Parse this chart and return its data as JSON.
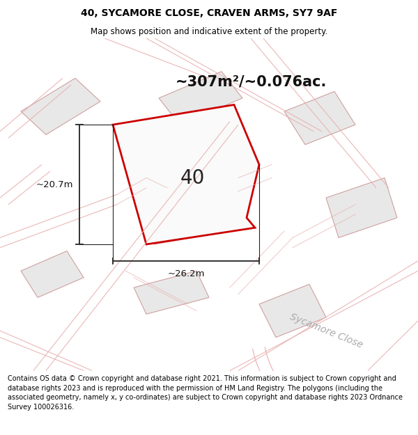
{
  "title": "40, SYCAMORE CLOSE, CRAVEN ARMS, SY7 9AF",
  "subtitle": "Map shows position and indicative extent of the property.",
  "area_text": "~307m²/~0.076ac.",
  "label_40": "40",
  "dim_width": "~26.2m",
  "dim_height": "~20.7m",
  "road_label": "Sycamore Close",
  "footer": "Contains OS data © Crown copyright and database right 2021. This information is subject to Crown copyright and database rights 2023 and is reproduced with the permission of HM Land Registry. The polygons (including the associated geometry, namely x, y co-ordinates) are subject to Crown copyright and database rights 2023 Ordnance Survey 100026316.",
  "map_bg": "#ffffff",
  "plot_fill": "#f5f5f5",
  "building_fill": "#e8e8e8",
  "building_edge": "#d0a0a0",
  "road_color": "#e8b0b0",
  "main_plot_color": "#cc0000",
  "title_fontsize": 10,
  "subtitle_fontsize": 8.5,
  "footer_fontsize": 7.0,
  "area_fontsize": 15,
  "label_fontsize": 20,
  "dim_fontsize": 9.5,
  "road_label_fontsize": 10
}
